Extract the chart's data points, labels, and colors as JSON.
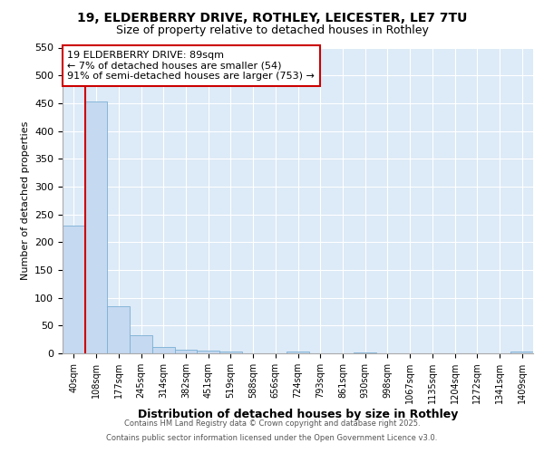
{
  "title1": "19, ELDERBERRY DRIVE, ROTHLEY, LEICESTER, LE7 7TU",
  "title2": "Size of property relative to detached houses in Rothley",
  "xlabel": "Distribution of detached houses by size in Rothley",
  "ylabel": "Number of detached properties",
  "categories": [
    "40sqm",
    "108sqm",
    "177sqm",
    "245sqm",
    "314sqm",
    "382sqm",
    "451sqm",
    "519sqm",
    "588sqm",
    "656sqm",
    "724sqm",
    "793sqm",
    "861sqm",
    "930sqm",
    "998sqm",
    "1067sqm",
    "1135sqm",
    "1204sqm",
    "1272sqm",
    "1341sqm",
    "1409sqm"
  ],
  "values": [
    230,
    453,
    84,
    32,
    12,
    7,
    5,
    4,
    0,
    0,
    3,
    0,
    0,
    2,
    0,
    0,
    0,
    0,
    0,
    0,
    3
  ],
  "bar_color": "#c5d9f0",
  "bar_edge_color": "#7bafd4",
  "background_color": "#ddeaf7",
  "grid_color": "#ffffff",
  "annotation_box_color": "#ffffff",
  "annotation_border_color": "#cc0000",
  "vline_color": "#cc0000",
  "annotation_title": "19 ELDERBERRY DRIVE: 89sqm",
  "annotation_line1": "← 7% of detached houses are smaller (54)",
  "annotation_line2": "91% of semi-detached houses are larger (753) →",
  "vline_position": 0.5,
  "ylim": [
    0,
    550
  ],
  "yticks": [
    0,
    50,
    100,
    150,
    200,
    250,
    300,
    350,
    400,
    450,
    500,
    550
  ],
  "footer1": "Contains HM Land Registry data © Crown copyright and database right 2025.",
  "footer2": "Contains public sector information licensed under the Open Government Licence v3.0.",
  "title_fontsize": 10,
  "subtitle_fontsize": 9,
  "ann_fontsize": 8,
  "ylabel_fontsize": 8,
  "xlabel_fontsize": 9,
  "tick_fontsize": 7,
  "footer_fontsize": 6
}
